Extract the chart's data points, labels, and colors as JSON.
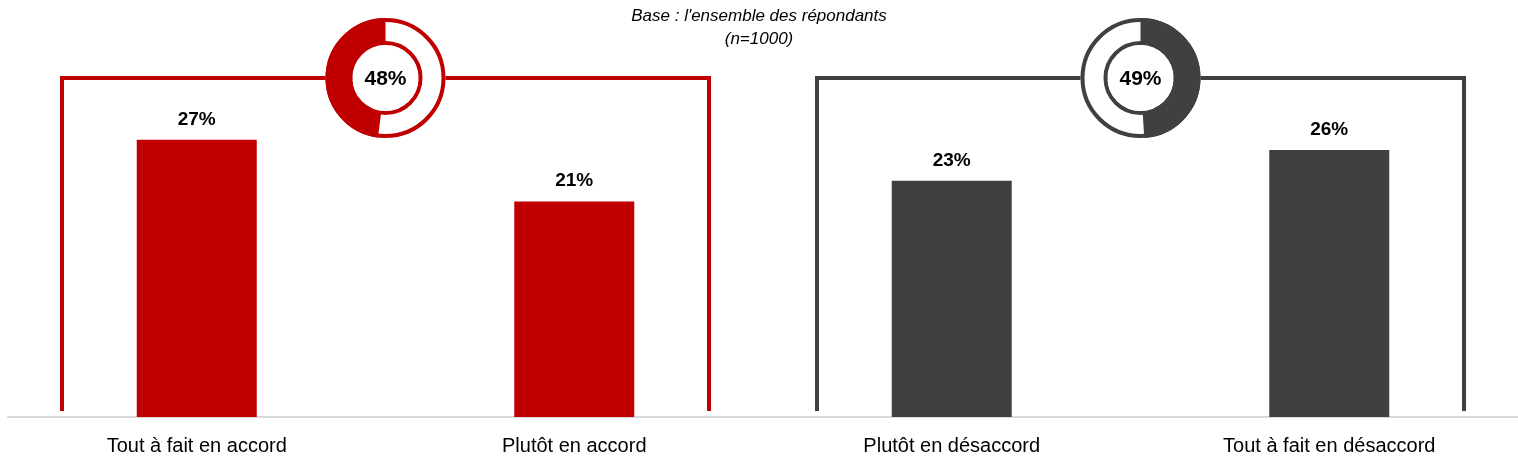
{
  "chart_data": {
    "type": "bar",
    "title": "Base : l'ensemble des répondants",
    "subtitle": "(n=1000)",
    "categories": [
      "Tout à fait en accord",
      "Plutôt en accord",
      "Plutôt en désaccord",
      "Tout à fait en désaccord"
    ],
    "values": [
      27,
      21,
      23,
      26
    ],
    "colors": [
      "#c00000",
      "#c00000",
      "#404040",
      "#404040"
    ],
    "value_labels": [
      "27%",
      "21%",
      "23%",
      "26%"
    ],
    "annotations": [
      "48%",
      "49%"
    ]
  }
}
